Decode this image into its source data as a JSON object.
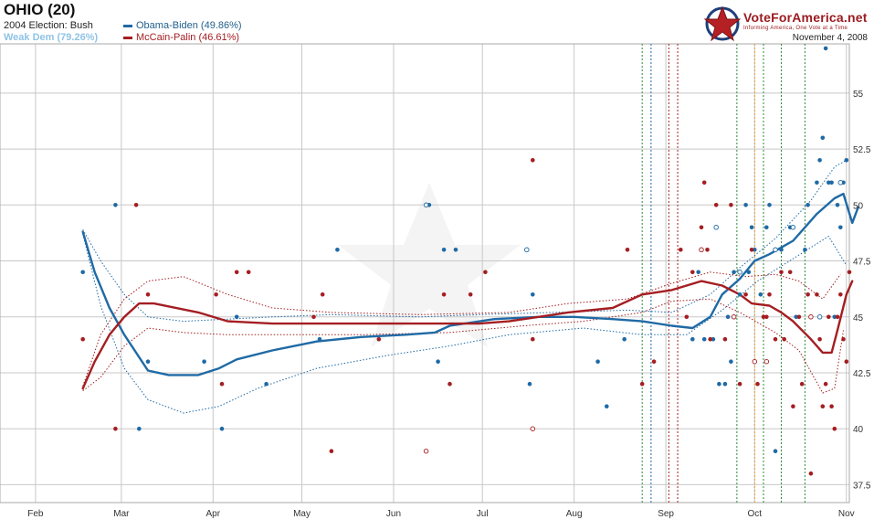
{
  "header": {
    "title": "OHIO (20)",
    "subtitle": "2004 Election: Bush",
    "weak": "Weak Dem (79.26%)",
    "date": "November 4, 2008"
  },
  "brand": {
    "name": "VoteForAmerica.net",
    "tagline": "Informing America, One Vote at a Time"
  },
  "colors": {
    "obama": "#1f6aa5",
    "mccain": "#a41e22",
    "grid": "#c8c8c8"
  },
  "chart_data": {
    "type": "line",
    "x_ticks": [
      {
        "label": "Feb",
        "day": 0
      },
      {
        "label": "Mar",
        "day": 29
      },
      {
        "label": "Apr",
        "day": 60
      },
      {
        "label": "May",
        "day": 90
      },
      {
        "label": "Jun",
        "day": 121
      },
      {
        "label": "Jul",
        "day": 151
      },
      {
        "label": "Aug",
        "day": 182
      },
      {
        "label": "Sep",
        "day": 213
      },
      {
        "label": "Oct",
        "day": 243
      },
      {
        "label": "Nov",
        "day": 274
      }
    ],
    "y_ticks": [
      "37.5",
      "40",
      "42.5",
      "45",
      "47.5",
      "50",
      "52.5",
      "55"
    ],
    "ylim": [
      36.7,
      57.2
    ],
    "xlim": [
      -12,
      275
    ],
    "grid": true,
    "vlines": [
      {
        "day": 205,
        "color": "#2a8a3a"
      },
      {
        "day": 208,
        "color": "#1f6aa5"
      },
      {
        "day": 214,
        "color": "#a41e22"
      },
      {
        "day": 217,
        "color": "#a41e22"
      },
      {
        "day": 237,
        "color": "#2a8a3a"
      },
      {
        "day": 243,
        "color": "#e0a030"
      },
      {
        "day": 246,
        "color": "#2a8a3a"
      },
      {
        "day": 252,
        "color": "#2a8a3a"
      },
      {
        "day": 260,
        "color": "#2a8a3a"
      }
    ],
    "series": [
      {
        "name": "Obama-Biden (49.86%)",
        "color": "#1f6aa5",
        "line": [
          [
            16,
            48.8
          ],
          [
            20,
            47
          ],
          [
            25,
            45.4
          ],
          [
            30,
            44.2
          ],
          [
            35,
            43.2
          ],
          [
            38,
            42.6
          ],
          [
            45,
            42.4
          ],
          [
            55,
            42.4
          ],
          [
            62,
            42.7
          ],
          [
            68,
            43.1
          ],
          [
            80,
            43.5
          ],
          [
            95,
            43.9
          ],
          [
            110,
            44.1
          ],
          [
            125,
            44.2
          ],
          [
            135,
            44.3
          ],
          [
            140,
            44.6
          ],
          [
            155,
            44.9
          ],
          [
            170,
            45
          ],
          [
            182,
            45
          ],
          [
            195,
            44.9
          ],
          [
            205,
            44.8
          ],
          [
            215,
            44.6
          ],
          [
            222,
            44.5
          ],
          [
            228,
            45
          ],
          [
            232,
            46
          ],
          [
            238,
            46.7
          ],
          [
            243,
            47.5
          ],
          [
            248,
            47.8
          ],
          [
            252,
            48.1
          ],
          [
            256,
            48.4
          ],
          [
            260,
            49
          ],
          [
            264,
            49.6
          ],
          [
            270,
            50.3
          ],
          [
            273,
            50.5
          ],
          [
            276,
            49.2
          ],
          [
            278,
            49.9
          ]
        ],
        "band_upper": [
          [
            16,
            48.9
          ],
          [
            22,
            47.5
          ],
          [
            30,
            46
          ],
          [
            38,
            45
          ],
          [
            50,
            44.8
          ],
          [
            65,
            44.9
          ],
          [
            80,
            45
          ],
          [
            100,
            45.1
          ],
          [
            130,
            45
          ],
          [
            150,
            45.1
          ],
          [
            175,
            45.2
          ],
          [
            200,
            45.3
          ],
          [
            215,
            45.2
          ],
          [
            228,
            46
          ],
          [
            238,
            47.2
          ],
          [
            250,
            48.5
          ],
          [
            262,
            50.2
          ],
          [
            270,
            51.7
          ],
          [
            274,
            52
          ]
        ],
        "band_lower": [
          [
            16,
            48.7
          ],
          [
            22,
            45.5
          ],
          [
            30,
            42.7
          ],
          [
            38,
            41.3
          ],
          [
            50,
            40.7
          ],
          [
            62,
            41
          ],
          [
            75,
            41.8
          ],
          [
            95,
            42.7
          ],
          [
            120,
            43.3
          ],
          [
            140,
            43.7
          ],
          [
            160,
            44.2
          ],
          [
            185,
            44.5
          ],
          [
            205,
            44.2
          ],
          [
            220,
            44.2
          ],
          [
            232,
            45.3
          ],
          [
            244,
            46.6
          ],
          [
            256,
            47.6
          ],
          [
            268,
            48.6
          ],
          [
            274,
            47.3
          ]
        ],
        "points": [
          [
            16,
            47
          ],
          [
            27,
            50
          ],
          [
            35,
            40
          ],
          [
            38,
            43
          ],
          [
            57,
            43
          ],
          [
            63,
            40
          ],
          [
            68,
            45
          ],
          [
            78,
            42
          ],
          [
            96,
            44
          ],
          [
            102,
            48
          ],
          [
            133,
            50
          ],
          [
            136,
            43
          ],
          [
            138,
            48
          ],
          [
            142,
            48
          ],
          [
            166,
            48
          ],
          [
            167,
            42
          ],
          [
            168,
            46
          ],
          [
            190,
            43
          ],
          [
            193,
            41
          ],
          [
            199,
            44
          ],
          [
            222,
            44
          ],
          [
            224,
            47
          ],
          [
            226,
            44
          ],
          [
            229,
            44
          ],
          [
            230,
            49
          ],
          [
            231,
            42
          ],
          [
            233,
            42
          ],
          [
            234,
            45
          ],
          [
            235,
            43
          ],
          [
            236,
            47
          ],
          [
            238,
            46
          ],
          [
            240,
            50
          ],
          [
            241,
            47
          ],
          [
            242,
            49
          ],
          [
            243,
            48
          ],
          [
            245,
            46
          ],
          [
            247,
            49
          ],
          [
            248,
            50
          ],
          [
            250,
            39
          ],
          [
            252,
            48
          ],
          [
            255,
            49
          ],
          [
            257,
            45
          ],
          [
            260,
            48
          ],
          [
            261,
            50
          ],
          [
            262,
            45
          ],
          [
            264,
            51
          ],
          [
            265,
            52
          ],
          [
            266,
            53
          ],
          [
            267,
            57
          ],
          [
            268,
            51
          ],
          [
            269,
            51
          ],
          [
            270,
            45
          ],
          [
            271,
            50
          ],
          [
            272,
            49
          ],
          [
            273,
            51
          ],
          [
            274,
            52
          ]
        ],
        "open_points": [
          [
            132,
            50
          ],
          [
            166,
            48
          ],
          [
            230,
            49
          ],
          [
            238,
            47
          ],
          [
            250,
            48
          ],
          [
            256,
            49
          ],
          [
            265,
            45
          ],
          [
            272,
            51
          ]
        ]
      },
      {
        "name": "McCain-Palin (46.61%)",
        "color": "#a41e22",
        "line": [
          [
            16,
            41.8
          ],
          [
            20,
            43
          ],
          [
            25,
            44.2
          ],
          [
            30,
            45
          ],
          [
            35,
            45.6
          ],
          [
            40,
            45.6
          ],
          [
            55,
            45.2
          ],
          [
            65,
            44.8
          ],
          [
            80,
            44.7
          ],
          [
            100,
            44.7
          ],
          [
            120,
            44.7
          ],
          [
            150,
            44.7
          ],
          [
            160,
            44.8
          ],
          [
            170,
            45
          ],
          [
            180,
            45.2
          ],
          [
            195,
            45.4
          ],
          [
            205,
            46
          ],
          [
            215,
            46.2
          ],
          [
            225,
            46.6
          ],
          [
            232,
            46.4
          ],
          [
            238,
            46
          ],
          [
            242,
            45.6
          ],
          [
            248,
            45.5
          ],
          [
            252,
            45.2
          ],
          [
            256,
            44.8
          ],
          [
            262,
            44
          ],
          [
            266,
            43.4
          ],
          [
            269,
            43.4
          ],
          [
            271,
            44.4
          ],
          [
            274,
            46
          ],
          [
            276,
            46.6
          ]
        ],
        "band_upper": [
          [
            16,
            41.9
          ],
          [
            22,
            44.2
          ],
          [
            30,
            45.8
          ],
          [
            38,
            46.6
          ],
          [
            50,
            46.8
          ],
          [
            65,
            46
          ],
          [
            80,
            45.4
          ],
          [
            100,
            45.2
          ],
          [
            130,
            45.1
          ],
          [
            160,
            45.2
          ],
          [
            180,
            45.6
          ],
          [
            200,
            45.8
          ],
          [
            215,
            46.5
          ],
          [
            228,
            47
          ],
          [
            240,
            46.8
          ],
          [
            250,
            46.9
          ],
          [
            258,
            46.6
          ],
          [
            266,
            45.8
          ],
          [
            272,
            46.9
          ]
        ],
        "band_lower": [
          [
            16,
            41.7
          ],
          [
            22,
            42.3
          ],
          [
            30,
            43.7
          ],
          [
            38,
            44.5
          ],
          [
            50,
            44.3
          ],
          [
            65,
            44.2
          ],
          [
            85,
            44.2
          ],
          [
            110,
            44.2
          ],
          [
            140,
            44.3
          ],
          [
            165,
            44.6
          ],
          [
            185,
            44.8
          ],
          [
            205,
            45.2
          ],
          [
            215,
            45.7
          ],
          [
            228,
            45.8
          ],
          [
            238,
            45.2
          ],
          [
            250,
            44.3
          ],
          [
            258,
            43.5
          ],
          [
            266,
            41.6
          ],
          [
            270,
            41.8
          ],
          [
            273,
            44.4
          ]
        ],
        "points": [
          [
            16,
            44
          ],
          [
            27,
            40
          ],
          [
            34,
            50
          ],
          [
            38,
            46
          ],
          [
            61,
            46
          ],
          [
            63,
            42
          ],
          [
            68,
            47
          ],
          [
            72,
            47
          ],
          [
            94,
            45
          ],
          [
            97,
            46
          ],
          [
            100,
            39
          ],
          [
            116,
            44
          ],
          [
            132,
            39
          ],
          [
            138,
            46
          ],
          [
            140,
            42
          ],
          [
            147,
            46
          ],
          [
            152,
            47
          ],
          [
            168,
            44
          ],
          [
            168,
            52
          ],
          [
            200,
            48
          ],
          [
            205,
            42
          ],
          [
            209,
            43
          ],
          [
            218,
            48
          ],
          [
            220,
            45
          ],
          [
            222,
            47
          ],
          [
            225,
            49
          ],
          [
            226,
            51
          ],
          [
            227,
            48
          ],
          [
            228,
            44
          ],
          [
            230,
            50
          ],
          [
            233,
            44
          ],
          [
            235,
            50
          ],
          [
            236,
            45
          ],
          [
            238,
            42
          ],
          [
            240,
            46
          ],
          [
            242,
            48
          ],
          [
            244,
            42
          ],
          [
            246,
            45
          ],
          [
            247,
            45
          ],
          [
            248,
            46
          ],
          [
            250,
            44
          ],
          [
            252,
            47
          ],
          [
            253,
            44
          ],
          [
            255,
            47
          ],
          [
            256,
            41
          ],
          [
            258,
            45
          ],
          [
            259,
            42
          ],
          [
            261,
            46
          ],
          [
            262,
            38
          ],
          [
            264,
            46
          ],
          [
            265,
            44
          ],
          [
            266,
            41
          ],
          [
            267,
            42
          ],
          [
            268,
            45
          ],
          [
            269,
            41
          ],
          [
            270,
            40
          ],
          [
            271,
            45
          ],
          [
            272,
            46
          ],
          [
            273,
            44
          ],
          [
            274,
            43
          ],
          [
            275,
            47
          ]
        ],
        "open_points": [
          [
            132,
            39
          ],
          [
            168,
            40
          ],
          [
            225,
            48
          ],
          [
            236,
            45
          ],
          [
            243,
            43
          ],
          [
            247,
            43
          ],
          [
            262,
            45
          ]
        ]
      }
    ]
  }
}
